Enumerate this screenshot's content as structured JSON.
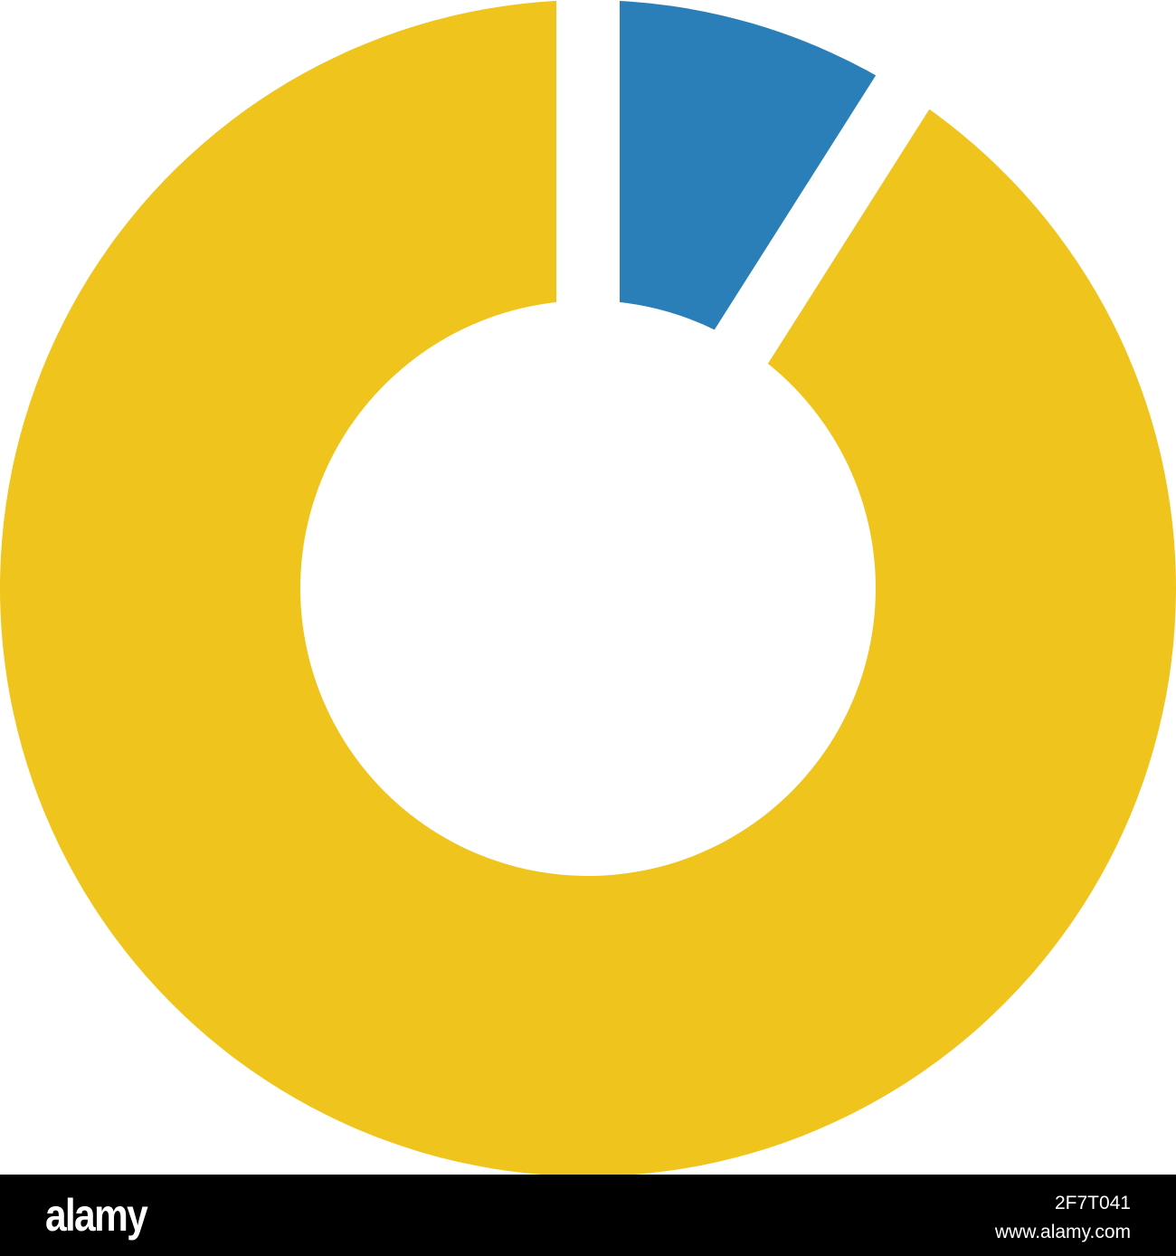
{
  "chart_data": {
    "type": "pie",
    "donut": true,
    "categories": [
      "",
      ""
    ],
    "values": [
      9,
      91
    ],
    "colors": [
      "#2a7fb8",
      "#efc41c"
    ],
    "start": "top",
    "direction": "clockwise",
    "legend": "none"
  },
  "footer": {
    "logo": "alamy",
    "image_id": "2F7T041",
    "url": "www.alamy.com"
  },
  "watermark": "alamy"
}
